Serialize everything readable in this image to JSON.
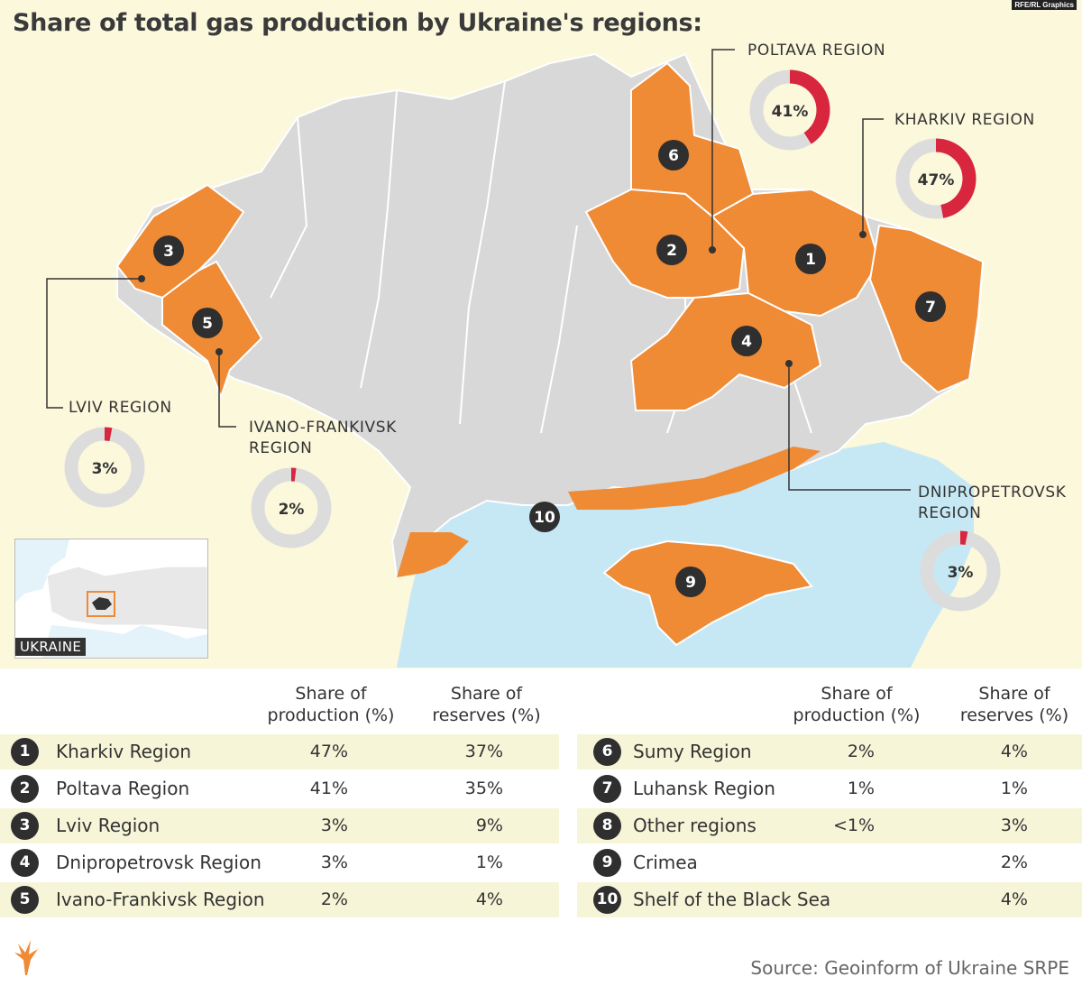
{
  "title": "Share of total gas production by Ukraine's regions:",
  "credit": "RFE/RL Graphics",
  "colors": {
    "highlight_region": "#ef8a35",
    "other_region": "#d8d8d8",
    "sea": "#c6e8f5",
    "donut_share": "#d7263d",
    "donut_rest": "#dcdcdc",
    "marker": "#2f2f2f"
  },
  "map_markers": [
    "1",
    "2",
    "3",
    "4",
    "5",
    "6",
    "7",
    "9",
    "10"
  ],
  "callouts": {
    "poltava": {
      "label": "POLTAVA REGION",
      "share_pct": 41,
      "text": "41%"
    },
    "kharkiv": {
      "label": "KHARKIV REGION",
      "share_pct": 47,
      "text": "47%"
    },
    "lviv": {
      "label": "LVIV REGION",
      "share_pct": 3,
      "text": "3%"
    },
    "ivano": {
      "label_line1": "IVANO-FRANKIVSK",
      "label_line2": "REGION",
      "share_pct": 2,
      "text": "2%"
    },
    "dnipro": {
      "label_line1": "DNIPROPETROVSK",
      "label_line2": "REGION",
      "share_pct": 3,
      "text": "3%"
    }
  },
  "inset_label": "UKRAINE",
  "table": {
    "headers": {
      "production": [
        "Share of",
        "production (%)"
      ],
      "reserves": [
        "Share of",
        "reserves (%)"
      ]
    },
    "left": [
      {
        "num": "1",
        "name": "Kharkiv Region",
        "production": "47%",
        "reserves": "37%"
      },
      {
        "num": "2",
        "name": "Poltava Region",
        "production": "41%",
        "reserves": "35%"
      },
      {
        "num": "3",
        "name": "Lviv Region",
        "production": "3%",
        "reserves": "9%"
      },
      {
        "num": "4",
        "name": "Dnipropetrovsk Region",
        "production": "3%",
        "reserves": "1%"
      },
      {
        "num": "5",
        "name": "Ivano-Frankivsk Region",
        "production": "2%",
        "reserves": "4%"
      }
    ],
    "right": [
      {
        "num": "6",
        "name": "Sumy Region",
        "production": "2%",
        "reserves": "4%"
      },
      {
        "num": "7",
        "name": "Luhansk Region",
        "production": "1%",
        "reserves": "1%"
      },
      {
        "num": "8",
        "name": "Other regions",
        "production": "<1%",
        "reserves": "3%"
      },
      {
        "num": "9",
        "name": "Crimea",
        "production": "",
        "reserves": "2%"
      },
      {
        "num": "10",
        "name": "Shelf of the Black Sea",
        "production": "",
        "reserves": "4%"
      }
    ]
  },
  "source": "Source: Geoinform of Ukraine SRPE"
}
